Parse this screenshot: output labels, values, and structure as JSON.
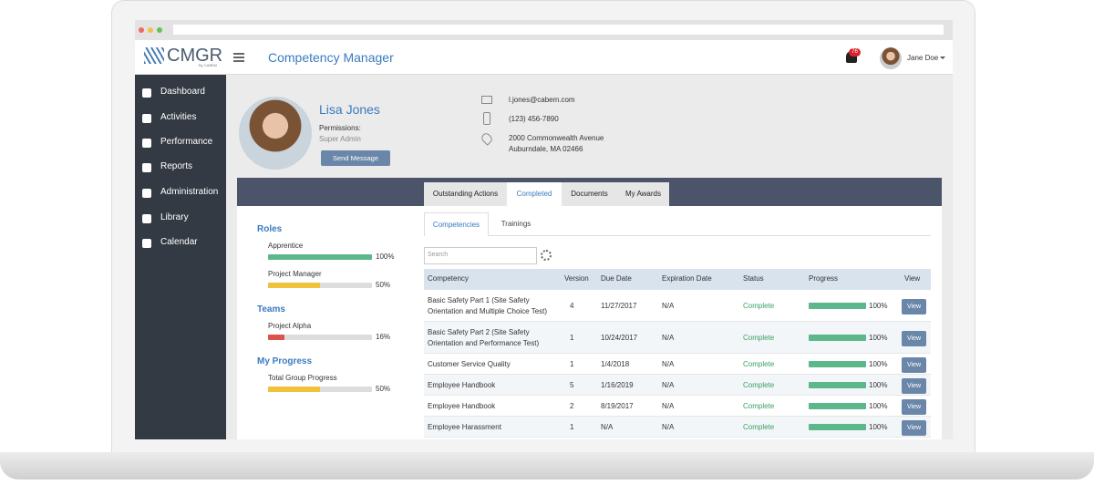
{
  "header": {
    "logo": "CMGR",
    "logo_sub": "By CABEM",
    "app_title": "Competency Manager",
    "notification_count": "76",
    "user": "Jane Doe"
  },
  "sidebar": {
    "items": [
      "Dashboard",
      "Activities",
      "Performance",
      "Reports",
      "Administration",
      "Library",
      "Calendar"
    ]
  },
  "profile": {
    "name": "Lisa Jones",
    "permissions_label": "Permissions:",
    "permissions": "Super Admin",
    "send_button": "Send Message",
    "email": "l.jones@cabem.com",
    "phone": "(123) 456-7890",
    "address_line1": "2000 Commonwealth Avenue",
    "address_line2": "Auburndale, MA 02466"
  },
  "tabs": [
    "Outstanding Actions",
    "Completed",
    "Documents",
    "My Awards"
  ],
  "summary": {
    "sections": [
      {
        "title": "Roles",
        "items": [
          {
            "name": "Apprentice",
            "progress": 100,
            "progress_label": "100%",
            "color": "#5cb88a"
          },
          {
            "name": "Project Manager",
            "progress": 50,
            "progress_label": "50%",
            "color": "#f0c23b"
          }
        ]
      },
      {
        "title": "Teams",
        "items": [
          {
            "name": "Project Alpha",
            "progress": 16,
            "progress_label": "16%",
            "color": "#d9534f"
          }
        ]
      },
      {
        "title": "My Progress",
        "items": [
          {
            "name": "Total Group Progress",
            "progress": 50,
            "progress_label": "50%",
            "color": "#f0c23b"
          }
        ]
      }
    ]
  },
  "subtabs": [
    "Competencies",
    "Trainings"
  ],
  "search_placeholder": "Search",
  "table": {
    "columns": [
      "Competency",
      "Version",
      "Due Date",
      "Expiration Date",
      "Status",
      "Progress",
      "View"
    ],
    "rows": [
      {
        "competency": "Basic Safety Part 1 (Site Safety Orientation and Multiple Choice Test)",
        "version": "4",
        "due_date": "11/27/2017",
        "expiration_date": "N/A",
        "status": "Complete",
        "progress": 100,
        "progress_label": "100%",
        "action": "View"
      },
      {
        "competency": "Basic Safety Part 2 (Site Safety Orientation and Performance Test)",
        "version": "1",
        "due_date": "10/24/2017",
        "expiration_date": "N/A",
        "status": "Complete",
        "progress": 100,
        "progress_label": "100%",
        "action": "View"
      },
      {
        "competency": "Customer Service Quality",
        "version": "1",
        "due_date": "1/4/2018",
        "expiration_date": "N/A",
        "status": "Complete",
        "progress": 100,
        "progress_label": "100%",
        "action": "View"
      },
      {
        "competency": "Employee Handbook",
        "version": "5",
        "due_date": "1/16/2019",
        "expiration_date": "N/A",
        "status": "Complete",
        "progress": 100,
        "progress_label": "100%",
        "action": "View"
      },
      {
        "competency": "Employee Handbook",
        "version": "2",
        "due_date": "8/19/2017",
        "expiration_date": "N/A",
        "status": "Complete",
        "progress": 100,
        "progress_label": "100%",
        "action": "View"
      },
      {
        "competency": "Employee Harassment",
        "version": "1",
        "due_date": "N/A",
        "expiration_date": "N/A",
        "status": "Complete",
        "progress": 100,
        "progress_label": "100%",
        "action": "View"
      }
    ]
  }
}
